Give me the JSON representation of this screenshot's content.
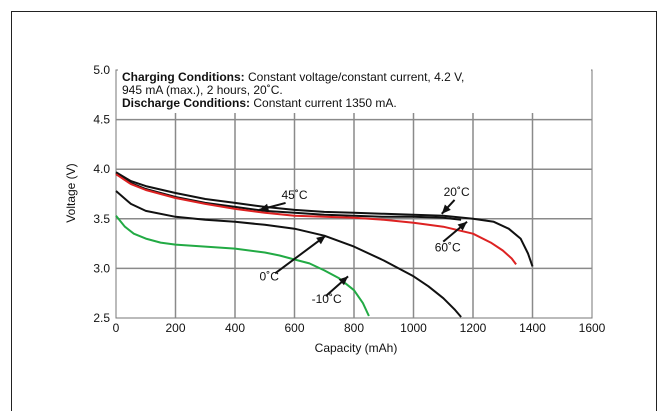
{
  "chart_data": {
    "type": "line",
    "xlabel": "Capacity (mAh)",
    "ylabel": "Voltage (V)",
    "xlim": [
      0,
      1600
    ],
    "ylim": [
      2.5,
      5.0
    ],
    "x_ticks": [
      "0",
      "200",
      "400",
      "600",
      "800",
      "1000",
      "1200",
      "1400",
      "1600"
    ],
    "y_ticks": [
      "2.5",
      "3.0",
      "3.5",
      "4.0",
      "4.5",
      "5.0"
    ],
    "grid": true,
    "notes": {
      "charging_label": "Charging Conditions:",
      "charging_text": " Constant voltage/constant current, 4.2 V,",
      "charging_text2": "945 mA (max.), 2 hours, 20˚C.",
      "discharge_label": "Discharge Conditions:",
      "discharge_text": " Constant current 1350 mA."
    },
    "series": [
      {
        "annotation": "45˚C",
        "color": "#111111",
        "points": [
          [
            0,
            3.97
          ],
          [
            50,
            3.88
          ],
          [
            100,
            3.83
          ],
          [
            200,
            3.76
          ],
          [
            300,
            3.7
          ],
          [
            400,
            3.66
          ],
          [
            500,
            3.62
          ],
          [
            600,
            3.59
          ],
          [
            700,
            3.57
          ],
          [
            800,
            3.56
          ],
          [
            900,
            3.55
          ],
          [
            1000,
            3.54
          ],
          [
            1100,
            3.53
          ],
          [
            1200,
            3.5
          ],
          [
            1270,
            3.47
          ],
          [
            1320,
            3.4
          ],
          [
            1360,
            3.3
          ],
          [
            1385,
            3.15
          ],
          [
            1400,
            3.02
          ]
        ]
      },
      {
        "annotation": "20˚C",
        "color": "#111111",
        "points": [
          [
            0,
            3.96
          ],
          [
            50,
            3.86
          ],
          [
            100,
            3.8
          ],
          [
            200,
            3.72
          ],
          [
            300,
            3.66
          ],
          [
            400,
            3.62
          ],
          [
            500,
            3.58
          ],
          [
            600,
            3.56
          ],
          [
            700,
            3.54
          ],
          [
            800,
            3.53
          ],
          [
            900,
            3.52
          ],
          [
            1000,
            3.52
          ],
          [
            1100,
            3.51
          ],
          [
            1160,
            3.49
          ]
        ]
      },
      {
        "annotation": "60˚C",
        "color": "#dd2222",
        "points": [
          [
            0,
            3.95
          ],
          [
            50,
            3.85
          ],
          [
            100,
            3.79
          ],
          [
            200,
            3.71
          ],
          [
            300,
            3.65
          ],
          [
            400,
            3.6
          ],
          [
            500,
            3.56
          ],
          [
            600,
            3.53
          ],
          [
            700,
            3.52
          ],
          [
            800,
            3.51
          ],
          [
            900,
            3.49
          ],
          [
            1000,
            3.46
          ],
          [
            1100,
            3.42
          ],
          [
            1200,
            3.35
          ],
          [
            1260,
            3.26
          ],
          [
            1300,
            3.18
          ],
          [
            1330,
            3.1
          ],
          [
            1345,
            3.04
          ]
        ]
      },
      {
        "annotation": "0˚C",
        "color": "#111111",
        "points": [
          [
            0,
            3.78
          ],
          [
            50,
            3.65
          ],
          [
            100,
            3.58
          ],
          [
            200,
            3.52
          ],
          [
            300,
            3.49
          ],
          [
            400,
            3.47
          ],
          [
            500,
            3.44
          ],
          [
            600,
            3.4
          ],
          [
            700,
            3.33
          ],
          [
            800,
            3.22
          ],
          [
            900,
            3.08
          ],
          [
            1000,
            2.92
          ],
          [
            1050,
            2.82
          ],
          [
            1100,
            2.7
          ],
          [
            1140,
            2.58
          ],
          [
            1160,
            2.51
          ]
        ]
      },
      {
        "annotation": "-10˚C",
        "color": "#22aa44",
        "points": [
          [
            0,
            3.53
          ],
          [
            30,
            3.42
          ],
          [
            60,
            3.35
          ],
          [
            100,
            3.3
          ],
          [
            150,
            3.26
          ],
          [
            200,
            3.24
          ],
          [
            300,
            3.22
          ],
          [
            400,
            3.2
          ],
          [
            500,
            3.16
          ],
          [
            550,
            3.13
          ],
          [
            600,
            3.09
          ],
          [
            650,
            3.05
          ],
          [
            700,
            2.98
          ],
          [
            750,
            2.9
          ],
          [
            800,
            2.78
          ],
          [
            830,
            2.65
          ],
          [
            850,
            2.52
          ]
        ]
      }
    ]
  }
}
